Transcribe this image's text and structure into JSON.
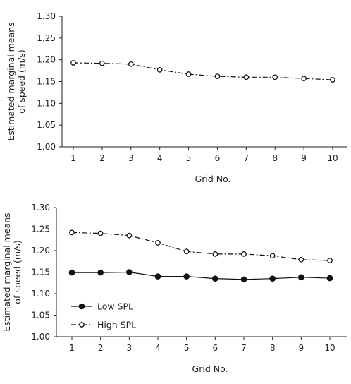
{
  "chart_data": [
    {
      "type": "line",
      "categories": [
        "1",
        "2",
        "3",
        "4",
        "5",
        "6",
        "7",
        "8",
        "9",
        "10"
      ],
      "xlabel": "Grid No.",
      "ylabel_lines": [
        "Estimated marginal means",
        "of speed (m/s)"
      ],
      "ylim": [
        1.0,
        1.3
      ],
      "yticks": [
        "1.00",
        "1.05",
        "1.10",
        "1.15",
        "1.20",
        "1.25",
        "1.30"
      ],
      "grid": false,
      "series": [
        {
          "values": [
            1.193,
            1.192,
            1.19,
            1.177,
            1.167,
            1.162,
            1.16,
            1.16,
            1.157,
            1.154
          ],
          "color": "#111111",
          "marker": "open-circle",
          "line_style": "dash-dot"
        }
      ]
    },
    {
      "type": "line",
      "categories": [
        "1",
        "2",
        "3",
        "4",
        "5",
        "6",
        "7",
        "8",
        "9",
        "10"
      ],
      "xlabel": "Grid No.",
      "ylabel_lines": [
        "Estimated marginal means",
        "of speed (m/s)"
      ],
      "ylim": [
        1.0,
        1.3
      ],
      "yticks": [
        "1.00",
        "1.05",
        "1.10",
        "1.15",
        "1.20",
        "1.25",
        "1.30"
      ],
      "grid": false,
      "legend_position": "bottom-left",
      "series": [
        {
          "name": "Low SPL",
          "values": [
            1.149,
            1.149,
            1.15,
            1.14,
            1.14,
            1.135,
            1.133,
            1.135,
            1.138,
            1.136
          ],
          "color": "#111111",
          "marker": "filled-circle",
          "line_style": "solid"
        },
        {
          "name": "High SPL",
          "values": [
            1.242,
            1.24,
            1.235,
            1.218,
            1.198,
            1.192,
            1.192,
            1.188,
            1.179,
            1.177
          ],
          "color": "#111111",
          "marker": "open-circle",
          "line_style": "dash-dot"
        }
      ]
    }
  ]
}
